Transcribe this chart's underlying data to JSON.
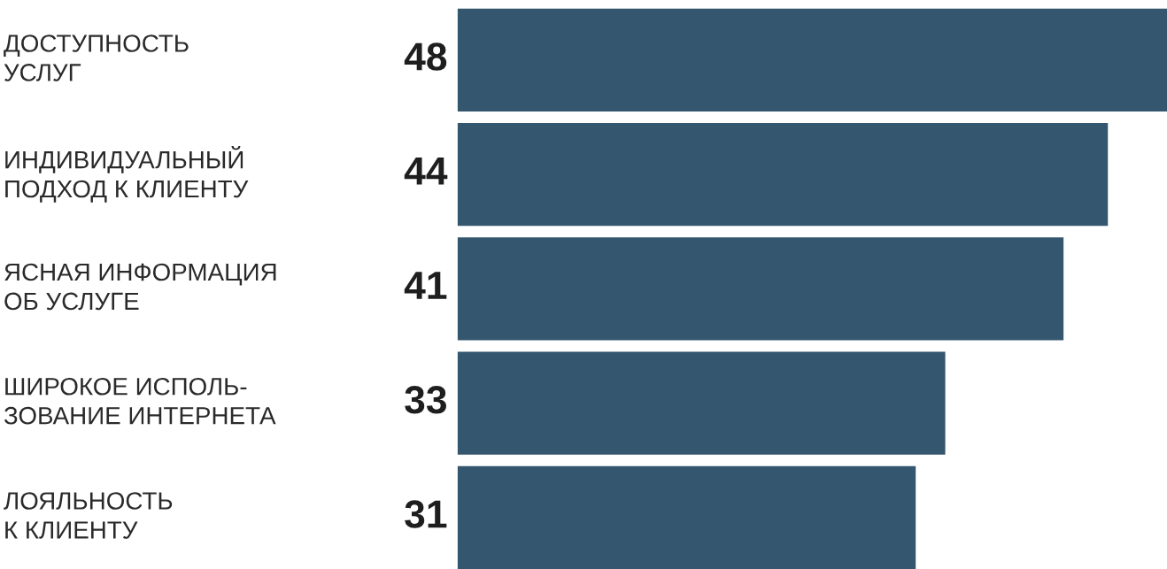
{
  "chart_data": {
    "type": "bar",
    "orientation": "horizontal",
    "categories": [
      "ДОСТУПНОСТЬ\nУСЛУГ",
      "ИНДИВИДУАЛЬНЫЙ\nПОДХОД К КЛИЕНТУ",
      "ЯСНАЯ ИНФОРМАЦИЯ\nОБ УСЛУГЕ",
      "ШИРОКОЕ ИСПОЛЬ-\nЗОВАНИЕ ИНТЕРНЕТА",
      "ЛОЯЛЬНОСТЬ\nК КЛИЕНТУ"
    ],
    "values": [
      48,
      44,
      41,
      33,
      31
    ],
    "color": "#34566e",
    "data_labels": true
  }
}
